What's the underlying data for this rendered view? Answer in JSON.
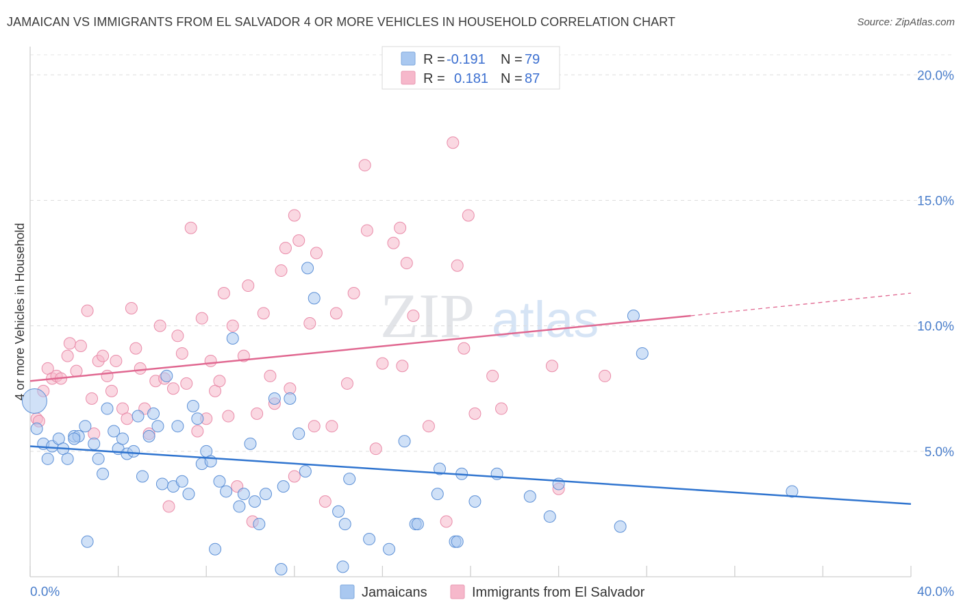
{
  "title": "JAMAICAN VS IMMIGRANTS FROM EL SALVADOR 4 OR MORE VEHICLES IN HOUSEHOLD CORRELATION CHART",
  "source": "Source: ZipAtlas.com",
  "watermark": {
    "zip": "ZIP",
    "atlas": "atlas"
  },
  "legend": {
    "rows": [
      {
        "r_label": "R =",
        "r_value": "-0.191",
        "n_label": "N =",
        "n_value": "79",
        "color": "#a9c8f0"
      },
      {
        "r_label": "R =",
        "r_value": "0.181",
        "n_label": "N =",
        "n_value": "87",
        "color": "#f6b8cb"
      }
    ]
  },
  "bottom_legend": {
    "series1": "Jamaicans",
    "series2": "Immigrants from El Salvador"
  },
  "chart_data": {
    "type": "scatter",
    "title": "JAMAICAN VS IMMIGRANTS FROM EL SALVADOR 4 OR MORE VEHICLES IN HOUSEHOLD CORRELATION CHART",
    "xlabel": "",
    "ylabel": "4 or more Vehicles in Household",
    "xlim": [
      0,
      40
    ],
    "ylim": [
      0,
      20.8
    ],
    "x_tick_labels": [
      "0.0%",
      "40.0%"
    ],
    "y_ticks": [
      5,
      10,
      15,
      20
    ],
    "y_tick_labels": [
      "5.0%",
      "10.0%",
      "15.0%",
      "20.0%"
    ],
    "grid": true,
    "legend_placement": "top-center",
    "series": [
      {
        "name": "Jamaicans",
        "color": "#a9c8f0",
        "stroke": "#5b8fd6",
        "line_color": "#2f74cf",
        "trend": {
          "x": [
            0,
            40
          ],
          "y": [
            5.2,
            2.9
          ],
          "dashed_from": null
        },
        "points": [
          [
            0.2,
            7.0
          ],
          [
            0.3,
            5.9
          ],
          [
            0.6,
            5.3
          ],
          [
            0.8,
            4.7
          ],
          [
            1.0,
            5.2
          ],
          [
            1.3,
            5.5
          ],
          [
            1.5,
            5.1
          ],
          [
            1.7,
            4.7
          ],
          [
            2.0,
            5.6
          ],
          [
            2.2,
            5.6
          ],
          [
            2.5,
            6.0
          ],
          [
            2.6,
            1.4
          ],
          [
            2.9,
            5.3
          ],
          [
            3.1,
            4.7
          ],
          [
            3.3,
            4.1
          ],
          [
            3.5,
            6.7
          ],
          [
            3.8,
            5.8
          ],
          [
            4.0,
            5.1
          ],
          [
            4.2,
            5.5
          ],
          [
            4.4,
            4.9
          ],
          [
            4.7,
            5.0
          ],
          [
            4.9,
            6.4
          ],
          [
            5.1,
            4.0
          ],
          [
            5.4,
            5.6
          ],
          [
            5.6,
            6.5
          ],
          [
            5.8,
            6.0
          ],
          [
            6.0,
            3.7
          ],
          [
            6.2,
            8.0
          ],
          [
            6.5,
            3.6
          ],
          [
            6.7,
            6.0
          ],
          [
            6.9,
            3.8
          ],
          [
            7.2,
            3.3
          ],
          [
            7.4,
            6.8
          ],
          [
            7.6,
            6.3
          ],
          [
            7.8,
            4.5
          ],
          [
            8.0,
            5.0
          ],
          [
            8.2,
            4.6
          ],
          [
            8.4,
            1.1
          ],
          [
            8.6,
            3.8
          ],
          [
            8.9,
            3.4
          ],
          [
            9.2,
            9.5
          ],
          [
            9.5,
            2.8
          ],
          [
            9.7,
            3.3
          ],
          [
            10.0,
            5.3
          ],
          [
            10.2,
            3.0
          ],
          [
            10.4,
            2.1
          ],
          [
            10.7,
            3.3
          ],
          [
            11.1,
            7.1
          ],
          [
            11.5,
            3.6
          ],
          [
            11.8,
            7.1
          ],
          [
            12.2,
            5.7
          ],
          [
            12.6,
            12.3
          ],
          [
            12.9,
            11.1
          ],
          [
            12.5,
            4.2
          ],
          [
            14.0,
            2.6
          ],
          [
            14.3,
            2.1
          ],
          [
            14.5,
            3.9
          ],
          [
            15.4,
            1.5
          ],
          [
            16.3,
            1.1
          ],
          [
            17.0,
            5.4
          ],
          [
            17.5,
            2.1
          ],
          [
            17.6,
            2.1
          ],
          [
            18.6,
            4.3
          ],
          [
            19.3,
            1.4
          ],
          [
            19.6,
            4.1
          ],
          [
            18.5,
            3.3
          ],
          [
            19.4,
            1.4
          ],
          [
            20.2,
            3.0
          ],
          [
            21.2,
            4.1
          ],
          [
            22.7,
            3.2
          ],
          [
            23.6,
            2.4
          ],
          [
            24.0,
            3.7
          ],
          [
            26.8,
            2.0
          ],
          [
            27.4,
            10.4
          ],
          [
            27.8,
            8.9
          ],
          [
            34.6,
            3.4
          ],
          [
            11.4,
            0.3
          ],
          [
            14.2,
            0.4
          ],
          [
            2.0,
            5.5
          ]
        ]
      },
      {
        "name": "Immigrants from El Salvador",
        "color": "#f6b8cb",
        "stroke": "#e98aa8",
        "line_color": "#e06790",
        "trend": {
          "x": [
            0,
            30
          ],
          "y": [
            7.8,
            10.4
          ],
          "dashed_x": [
            30,
            40
          ],
          "dashed_y": [
            10.4,
            11.3
          ]
        },
        "points": [
          [
            0.3,
            6.3
          ],
          [
            0.4,
            6.2
          ],
          [
            0.6,
            7.4
          ],
          [
            0.8,
            8.3
          ],
          [
            1.0,
            7.9
          ],
          [
            1.2,
            8.0
          ],
          [
            1.4,
            7.9
          ],
          [
            1.7,
            8.8
          ],
          [
            1.8,
            9.3
          ],
          [
            2.1,
            8.2
          ],
          [
            2.3,
            9.2
          ],
          [
            2.6,
            10.6
          ],
          [
            2.8,
            7.1
          ],
          [
            2.9,
            5.7
          ],
          [
            3.1,
            8.6
          ],
          [
            3.3,
            8.8
          ],
          [
            3.5,
            8.0
          ],
          [
            3.7,
            7.4
          ],
          [
            3.9,
            8.6
          ],
          [
            4.2,
            6.7
          ],
          [
            4.4,
            6.3
          ],
          [
            4.6,
            10.7
          ],
          [
            4.8,
            9.1
          ],
          [
            5.0,
            8.3
          ],
          [
            5.2,
            6.7
          ],
          [
            5.4,
            5.7
          ],
          [
            5.7,
            7.8
          ],
          [
            5.9,
            10.0
          ],
          [
            6.1,
            7.9
          ],
          [
            6.3,
            2.8
          ],
          [
            6.5,
            7.5
          ],
          [
            6.7,
            9.6
          ],
          [
            6.9,
            8.9
          ],
          [
            7.1,
            7.7
          ],
          [
            7.3,
            13.9
          ],
          [
            7.6,
            5.8
          ],
          [
            7.8,
            10.3
          ],
          [
            8.0,
            6.3
          ],
          [
            8.2,
            8.6
          ],
          [
            8.4,
            7.4
          ],
          [
            8.6,
            7.8
          ],
          [
            8.8,
            11.3
          ],
          [
            9.0,
            6.4
          ],
          [
            9.2,
            10.0
          ],
          [
            9.4,
            3.6
          ],
          [
            9.7,
            8.8
          ],
          [
            9.9,
            11.6
          ],
          [
            10.1,
            2.2
          ],
          [
            10.3,
            6.5
          ],
          [
            10.6,
            10.5
          ],
          [
            10.9,
            8.0
          ],
          [
            11.1,
            6.9
          ],
          [
            11.4,
            12.2
          ],
          [
            11.6,
            13.1
          ],
          [
            11.8,
            7.5
          ],
          [
            12.0,
            14.4
          ],
          [
            12.2,
            13.4
          ],
          [
            12.7,
            10.1
          ],
          [
            12.9,
            6.0
          ],
          [
            13.0,
            12.9
          ],
          [
            13.4,
            3.0
          ],
          [
            13.7,
            6.0
          ],
          [
            13.9,
            10.5
          ],
          [
            14.4,
            7.7
          ],
          [
            14.7,
            11.3
          ],
          [
            15.2,
            16.4
          ],
          [
            15.3,
            13.8
          ],
          [
            15.7,
            5.1
          ],
          [
            16.0,
            8.5
          ],
          [
            16.5,
            13.3
          ],
          [
            16.8,
            13.9
          ],
          [
            16.9,
            8.4
          ],
          [
            17.1,
            12.5
          ],
          [
            17.4,
            10.4
          ],
          [
            18.1,
            6.0
          ],
          [
            18.9,
            2.2
          ],
          [
            19.2,
            17.3
          ],
          [
            19.4,
            12.4
          ],
          [
            19.7,
            9.1
          ],
          [
            19.9,
            14.4
          ],
          [
            20.2,
            6.5
          ],
          [
            21.0,
            8.0
          ],
          [
            21.4,
            6.7
          ],
          [
            23.7,
            8.4
          ],
          [
            24.0,
            3.5
          ],
          [
            26.1,
            8.0
          ],
          [
            12.0,
            4.0
          ]
        ]
      }
    ]
  }
}
